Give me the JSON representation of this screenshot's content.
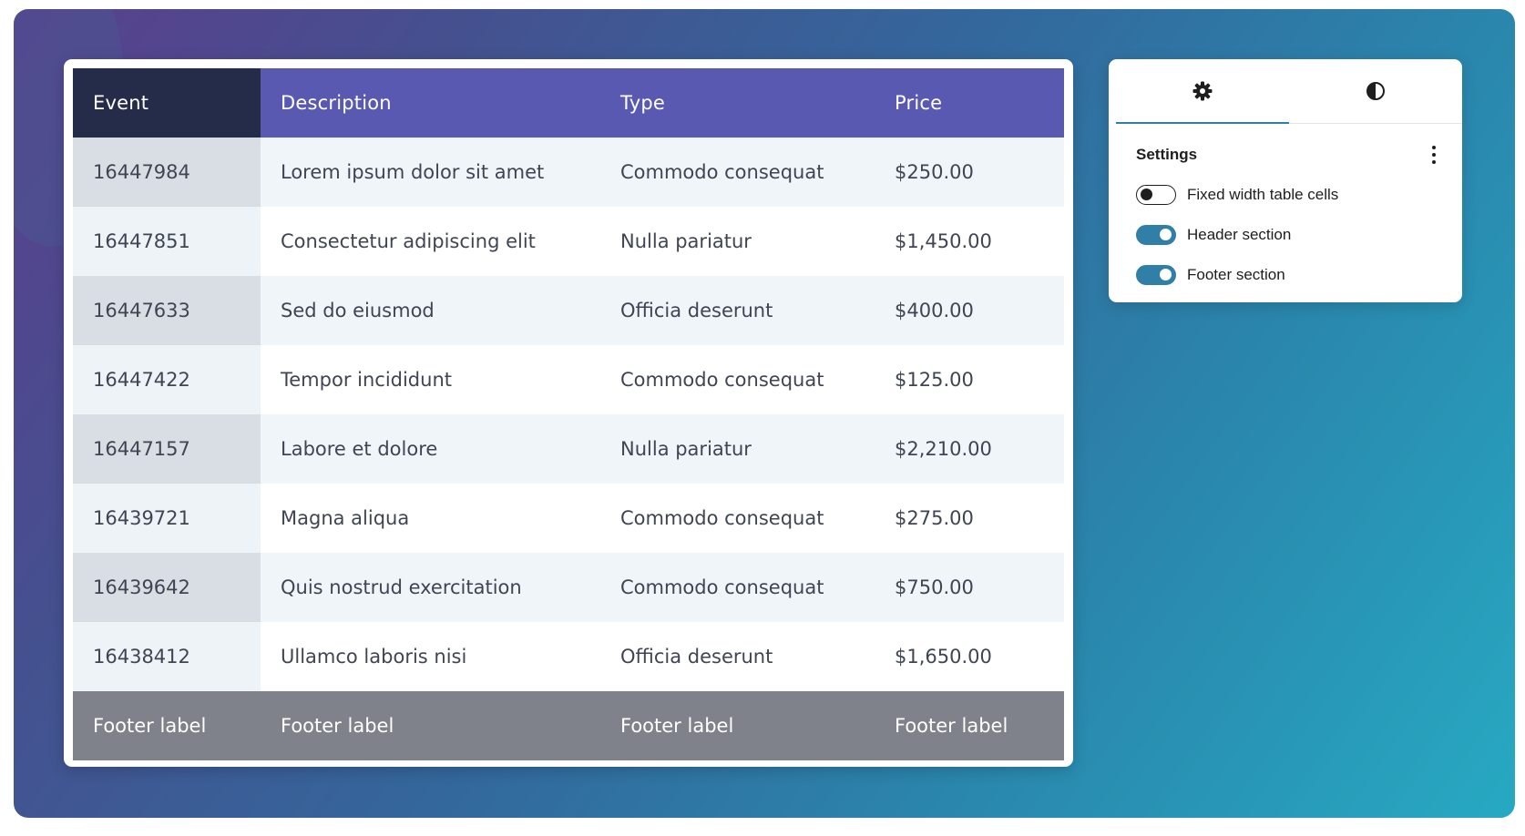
{
  "table": {
    "headers": [
      "Event",
      "Description",
      "Type",
      "Price"
    ],
    "rows": [
      [
        "16447984",
        "Lorem ipsum dolor sit amet",
        "Commodo consequat",
        "$250.00"
      ],
      [
        "16447851",
        "Consectetur adipiscing elit",
        "Nulla pariatur",
        "$1,450.00"
      ],
      [
        "16447633",
        "Sed do eiusmod",
        "Officia deserunt",
        "$400.00"
      ],
      [
        "16447422",
        "Tempor incididunt",
        "Commodo consequat",
        "$125.00"
      ],
      [
        "16447157",
        "Labore et dolore",
        "Nulla pariatur",
        "$2,210.00"
      ],
      [
        "16439721",
        "Magna aliqua",
        "Commodo consequat",
        "$275.00"
      ],
      [
        "16439642",
        "Quis nostrud exercitation",
        "Commodo consequat",
        "$750.00"
      ],
      [
        "16438412",
        "Ullamco laboris nisi",
        "Officia deserunt",
        "$1,650.00"
      ]
    ],
    "footer": [
      "Footer label",
      "Footer label",
      "Footer label",
      "Footer label"
    ],
    "colors": {
      "header_first": "#242c4a",
      "header": "#5a59b1",
      "footer": "#7f828b"
    }
  },
  "panel": {
    "tabs": [
      {
        "icon": "gear-icon",
        "active": true
      },
      {
        "icon": "contrast-icon",
        "active": false
      }
    ],
    "section_title": "Settings",
    "toggles": [
      {
        "label": "Fixed width table cells",
        "on": false
      },
      {
        "label": "Header section",
        "on": true
      },
      {
        "label": "Footer section",
        "on": true
      }
    ],
    "accent": "#2f7fa7"
  }
}
